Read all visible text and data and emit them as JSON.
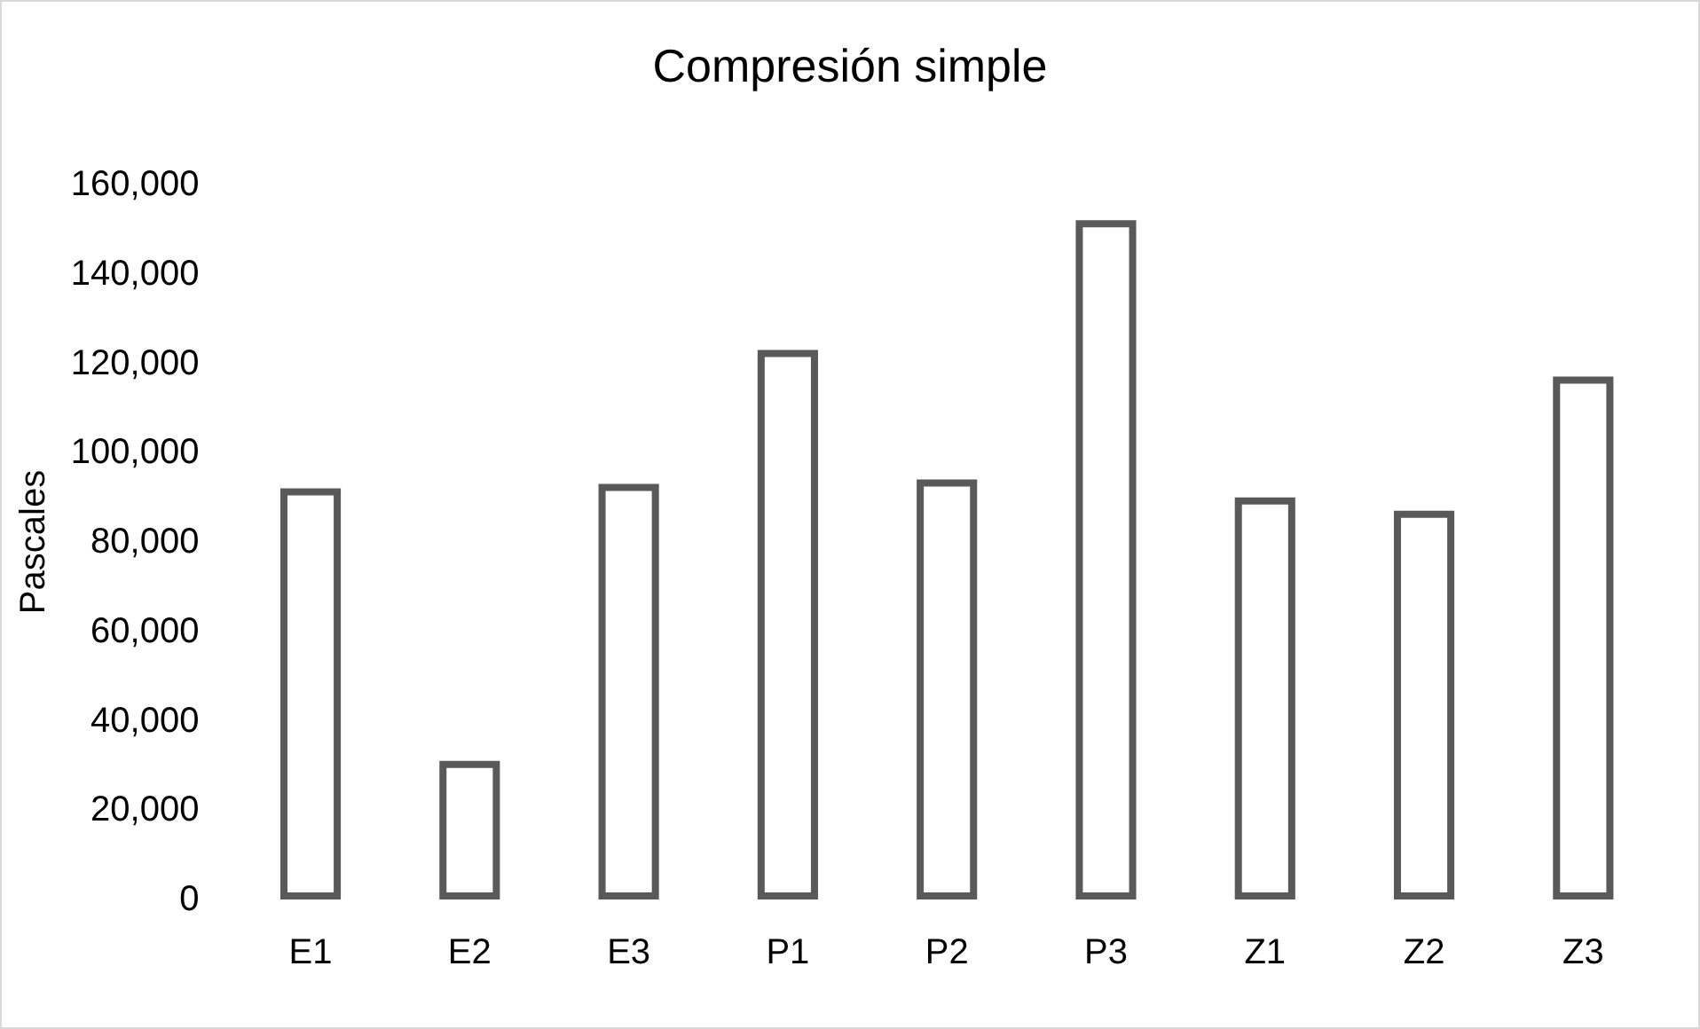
{
  "chart_data": {
    "type": "bar",
    "title": "Compresión simple",
    "ylabel": "Pascales",
    "categories": [
      "E1",
      "E2",
      "E3",
      "P1",
      "P2",
      "P3",
      "Z1",
      "Z2",
      "Z3"
    ],
    "series": [
      {
        "color": "#595959",
        "values": [
          92000,
          31000,
          93000,
          123000,
          94000,
          152000,
          90000,
          87000,
          117000
        ]
      }
    ],
    "ylim": [
      0,
      160000
    ],
    "yticks": [
      {
        "value": 0,
        "label": "0"
      },
      {
        "value": 20000,
        "label": "20,000"
      },
      {
        "value": 40000,
        "label": "40,000"
      },
      {
        "value": 60000,
        "label": "60,000"
      },
      {
        "value": 80000,
        "label": "80,000"
      },
      {
        "value": 100000,
        "label": "100,000"
      },
      {
        "value": 120000,
        "label": "120,000"
      },
      {
        "value": 140000,
        "label": "140,000"
      },
      {
        "value": 160000,
        "label": "160,000"
      }
    ],
    "grid": false
  }
}
